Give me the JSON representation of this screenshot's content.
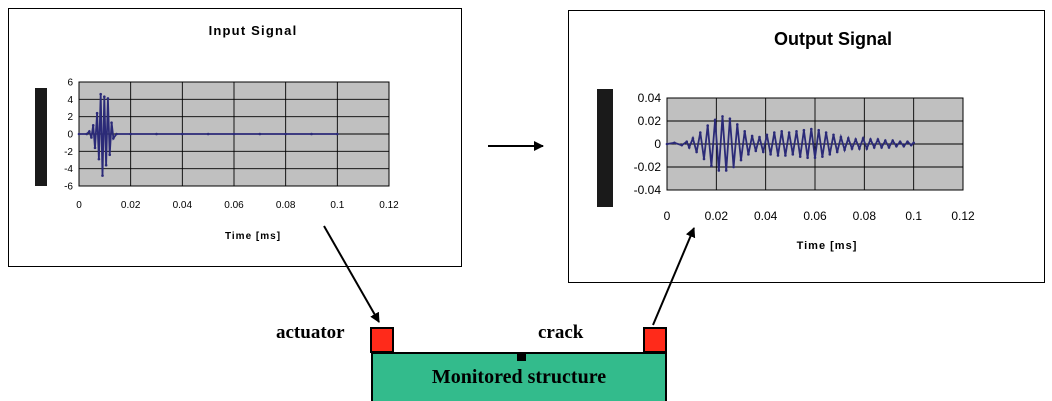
{
  "colors": {
    "plot_area": "#c0c0c0",
    "signal": "#2b2a78",
    "structure": "#33bb8c",
    "sensor": "#ff2a1a"
  },
  "chart_data": [
    {
      "id": "input",
      "type": "line",
      "title": "Input Signal",
      "xlabel": "Time  [ms]",
      "ylabel": "",
      "xlim": [
        0,
        0.12
      ],
      "ylim": [
        -6,
        6
      ],
      "x_ticks": [
        "0",
        "0.02",
        "0.04",
        "0.06",
        "0.08",
        "0.1",
        "0.12"
      ],
      "y_ticks": [
        "6",
        "4",
        "2",
        "0",
        "-2",
        "-4",
        "-6"
      ],
      "grid": true,
      "series": [
        {
          "x": [
            0,
            0.003,
            0.004,
            0.0048,
            0.0055,
            0.0062,
            0.007,
            0.0077,
            0.0084,
            0.0091,
            0.0098,
            0.0105,
            0.0112,
            0.0119,
            0.0126,
            0.0133,
            0.0145,
            0.02,
            0.03,
            0.04,
            0.05,
            0.06,
            0.07,
            0.08,
            0.09,
            0.1
          ],
          "y": [
            0,
            0,
            0.3,
            -0.4,
            1.0,
            -1.6,
            2.4,
            -2.9,
            4.6,
            -4.8,
            4.3,
            -3.6,
            4.1,
            -2.4,
            1.3,
            -0.5,
            0,
            0,
            0,
            0,
            0,
            0,
            0,
            0,
            0,
            0
          ]
        }
      ]
    },
    {
      "id": "output",
      "type": "line",
      "title": "Output Signal",
      "xlabel": "Time  [ms]",
      "ylabel": "",
      "xlim": [
        0,
        0.12
      ],
      "ylim": [
        -0.04,
        0.04
      ],
      "x_ticks": [
        "0",
        "0.02",
        "0.04",
        "0.06",
        "0.08",
        "0.1",
        "0.12"
      ],
      "y_ticks": [
        "0.04",
        "0.02",
        "0",
        "-0.02",
        "-0.04"
      ],
      "grid": true,
      "series": [
        {
          "x": [
            0,
            0.003,
            0.006,
            0.008,
            0.009,
            0.0105,
            0.012,
            0.0135,
            0.015,
            0.0165,
            0.018,
            0.0195,
            0.021,
            0.0225,
            0.024,
            0.0255,
            0.027,
            0.0285,
            0.03,
            0.0315,
            0.033,
            0.0345,
            0.036,
            0.0375,
            0.039,
            0.0405,
            0.042,
            0.0435,
            0.045,
            0.0465,
            0.048,
            0.0495,
            0.051,
            0.0525,
            0.054,
            0.0555,
            0.057,
            0.0585,
            0.06,
            0.0615,
            0.063,
            0.0645,
            0.066,
            0.0675,
            0.069,
            0.0705,
            0.072,
            0.0735,
            0.075,
            0.0765,
            0.078,
            0.0795,
            0.081,
            0.0825,
            0.084,
            0.0855,
            0.087,
            0.0885,
            0.09,
            0.0915,
            0.093,
            0.0945,
            0.096,
            0.0975,
            0.099,
            0.1
          ],
          "y": [
            0,
            0.001,
            -0.001,
            0.002,
            -0.003,
            0.005,
            -0.007,
            0.01,
            -0.013,
            0.016,
            -0.019,
            0.021,
            -0.023,
            0.024,
            -0.023,
            0.022,
            -0.02,
            0.017,
            -0.014,
            0.011,
            -0.009,
            0.007,
            -0.006,
            0.006,
            -0.007,
            0.008,
            -0.009,
            0.01,
            -0.01,
            0.011,
            -0.01,
            0.01,
            -0.009,
            0.011,
            -0.011,
            0.012,
            -0.012,
            0.013,
            -0.012,
            0.012,
            -0.011,
            0.01,
            -0.009,
            0.008,
            -0.007,
            0.006,
            -0.005,
            0.005,
            -0.004,
            0.004,
            -0.004,
            0.005,
            -0.004,
            0.004,
            -0.003,
            0.004,
            -0.003,
            0.003,
            -0.003,
            0.003,
            -0.002,
            0.002,
            -0.002,
            0.002,
            -0.001,
            0.001
          ]
        }
      ]
    }
  ],
  "labels": {
    "actuator": "actuator",
    "crack": "crack",
    "structure": "Monitored structure"
  }
}
